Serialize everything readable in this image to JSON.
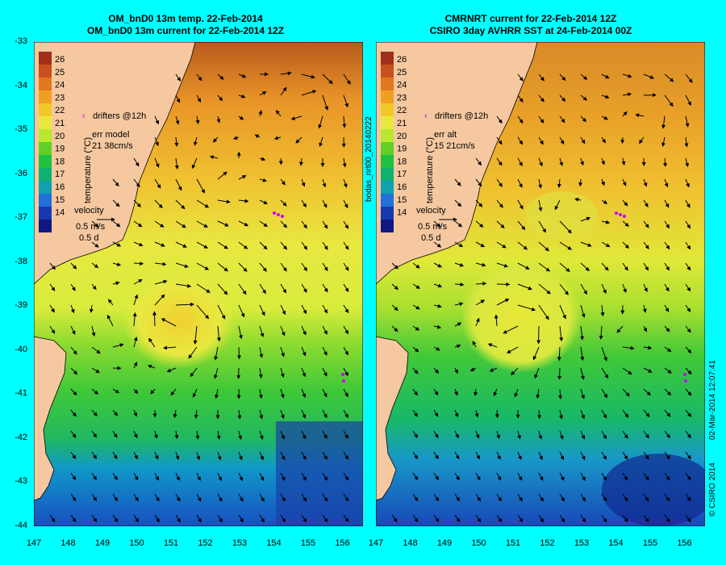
{
  "left_panel": {
    "title_line1": "OM_bnD0 13m temp. 22-Feb-2014",
    "title_line2": "OM_bnD0 13m current for 22-Feb-2014 12Z",
    "colorbar_label": "temperature (°C)",
    "drifters_label": "drifters @12h",
    "err_label": "err model",
    "err_value": "21 38cm/s",
    "velocity_label": "velocity",
    "velocity_scale_1": "0.5 m/s",
    "velocity_scale_2": "0.5 d"
  },
  "right_panel": {
    "title_line1": "CMRNRT current for 22-Feb-2014 12Z",
    "title_line2": "CSIRO 3day AVHRR SST at 24-Feb-2014 00Z",
    "colorbar_label": "temperature (°C)",
    "drifters_label": "drifters @12h",
    "err_label": "err alt",
    "err_value": "15 21cm/s",
    "velocity_label": "velocity",
    "velocity_scale_1": "0.5 m/s",
    "velocity_scale_2": "0.5 d"
  },
  "side_labels": {
    "middle": "bodas_nrt00_20140222",
    "right_date": "02-Mar-2014 12:07:41",
    "right_copyright": "© CSIRO 2014"
  },
  "colorbar_ticks": [
    "26",
    "25",
    "24",
    "23",
    "22",
    "21",
    "20",
    "19",
    "18",
    "17",
    "16",
    "15",
    "14"
  ],
  "y_ticks": [
    "-33",
    "-34",
    "-35",
    "-36",
    "-37",
    "-38",
    "-39",
    "-40",
    "-41",
    "-42",
    "-43",
    "-44"
  ],
  "x_ticks": [
    "147",
    "148",
    "149",
    "150",
    "151",
    "152",
    "153",
    "154",
    "155",
    "156"
  ],
  "colors": {
    "background": "#00ffff",
    "land": "#f5c8a0",
    "drifter": "#cc00ff",
    "colorbar": [
      "#a0301a",
      "#c8501e",
      "#e0781e",
      "#f0a020",
      "#f0c828",
      "#e8e840",
      "#b8e830",
      "#60d028",
      "#20c040",
      "#10b070",
      "#10a0b0",
      "#2070d8",
      "#1838b0",
      "#101880"
    ]
  }
}
